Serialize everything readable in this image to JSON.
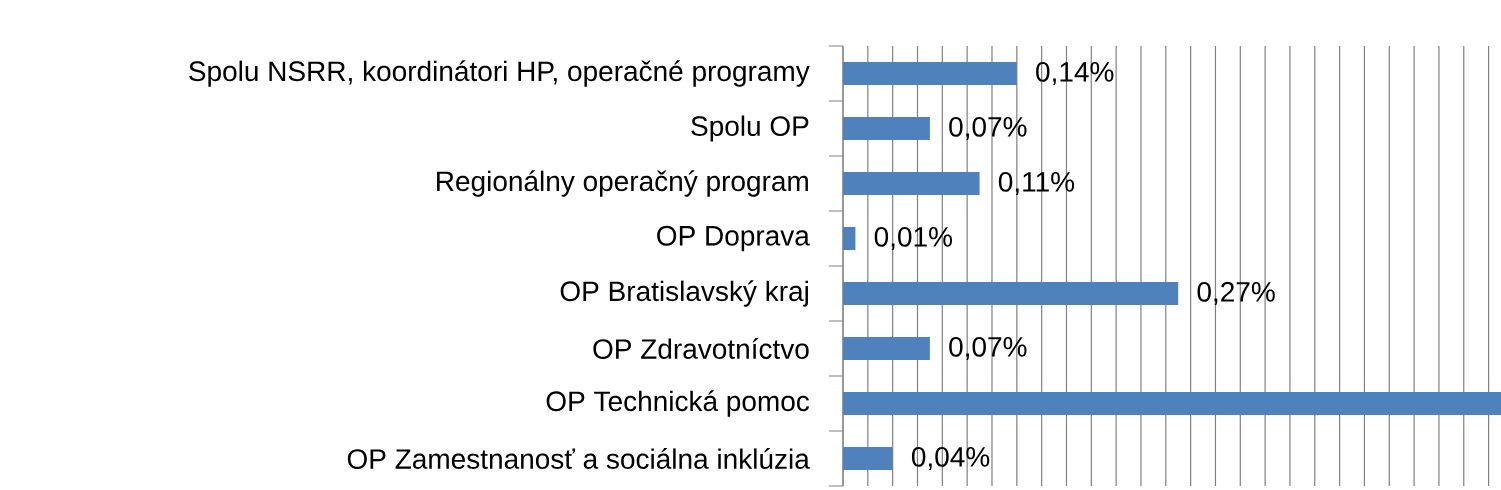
{
  "chart_data": {
    "type": "bar",
    "orientation": "horizontal",
    "categories": [
      "Spolu NSRR, koordinátori HP, operačné programy",
      "Spolu OP",
      "Regionálny operačný program",
      "OP Doprava",
      "OP Bratislavský kraj",
      "OP Zdravotníctvo",
      "OP Technická pomoc",
      "OP Zamestnanosť a sociálna inklúzia"
    ],
    "values": [
      0.14,
      0.07,
      0.11,
      0.01,
      0.27,
      0.07,
      0.53,
      0.04
    ],
    "value_labels": [
      "0,14%",
      "0,07%",
      "0,11%",
      "0,01%",
      "0,27%",
      "0,07%",
      null,
      "0,04%"
    ],
    "color": "#4f81bd",
    "xlim": [
      0,
      0.53
    ],
    "grid": "x",
    "tick_labels": "y"
  }
}
